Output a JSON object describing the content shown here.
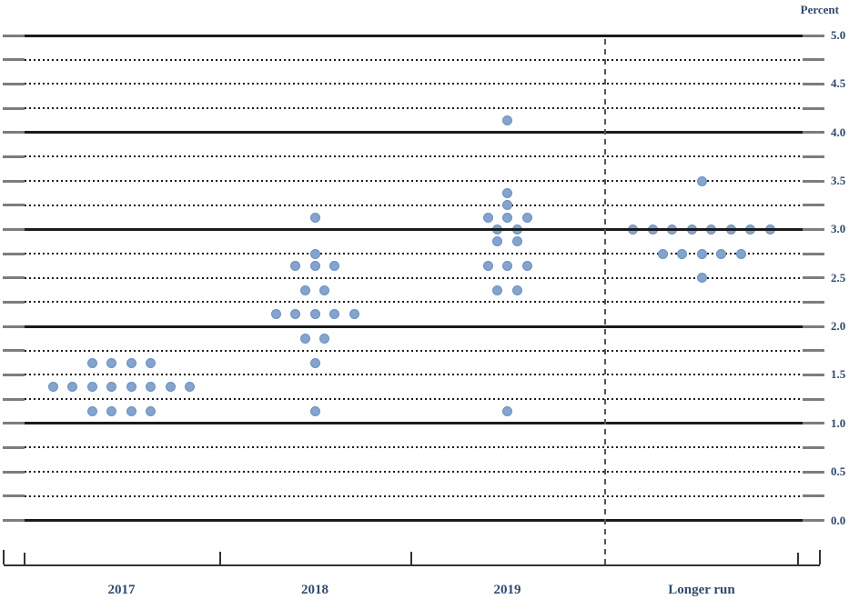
{
  "header": {
    "unit_label": "Percent"
  },
  "colors": {
    "background": "#ffffff",
    "dot_fill": "#84a3cd",
    "dot_border": "#6b91c1",
    "grid_line": "#1b1b1b",
    "grid_cap_gray": "#7d7d7d",
    "axis_line": "#333333",
    "label_text": "#31496e",
    "separator": "#565656"
  },
  "chart_data": {
    "type": "scatter",
    "subtype": "fomc-dot-plot",
    "title": "",
    "xlabel": "",
    "ylabel": "Percent",
    "ylim": [
      0.0,
      5.0
    ],
    "gridline_step": 0.25,
    "gridline_style": "solid at integers, dotted at quarter values",
    "label_step": 0.5,
    "y_tick_labels": [
      "5.0",
      "4.5",
      "4.0",
      "3.5",
      "3.0",
      "2.5",
      "2.0",
      "1.5",
      "1.0",
      "0.5",
      "0.0"
    ],
    "categories": [
      "2017",
      "2018",
      "2019",
      "Longer run"
    ],
    "legend_position": "none",
    "separator_after_category": "2019",
    "series": [
      {
        "category": "2017",
        "dots": [
          {
            "value": 1.625,
            "count": 4
          },
          {
            "value": 1.375,
            "count": 8
          },
          {
            "value": 1.125,
            "count": 4
          }
        ]
      },
      {
        "category": "2018",
        "dots": [
          {
            "value": 3.125,
            "count": 1
          },
          {
            "value": 2.75,
            "count": 1
          },
          {
            "value": 2.625,
            "count": 3
          },
          {
            "value": 2.375,
            "count": 2
          },
          {
            "value": 2.125,
            "count": 5
          },
          {
            "value": 1.875,
            "count": 2
          },
          {
            "value": 1.625,
            "count": 1
          },
          {
            "value": 1.125,
            "count": 1
          }
        ]
      },
      {
        "category": "2019",
        "dots": [
          {
            "value": 4.125,
            "count": 1
          },
          {
            "value": 3.375,
            "count": 1
          },
          {
            "value": 3.25,
            "count": 1
          },
          {
            "value": 3.125,
            "count": 3
          },
          {
            "value": 3.0,
            "count": 2
          },
          {
            "value": 2.875,
            "count": 2
          },
          {
            "value": 2.625,
            "count": 3
          },
          {
            "value": 2.375,
            "count": 2
          },
          {
            "value": 1.125,
            "count": 1
          }
        ]
      },
      {
        "category": "Longer run",
        "dots": [
          {
            "value": 3.5,
            "count": 1
          },
          {
            "value": 3.0,
            "count": 8
          },
          {
            "value": 2.75,
            "count": 5
          },
          {
            "value": 2.5,
            "count": 1
          }
        ]
      }
    ]
  }
}
